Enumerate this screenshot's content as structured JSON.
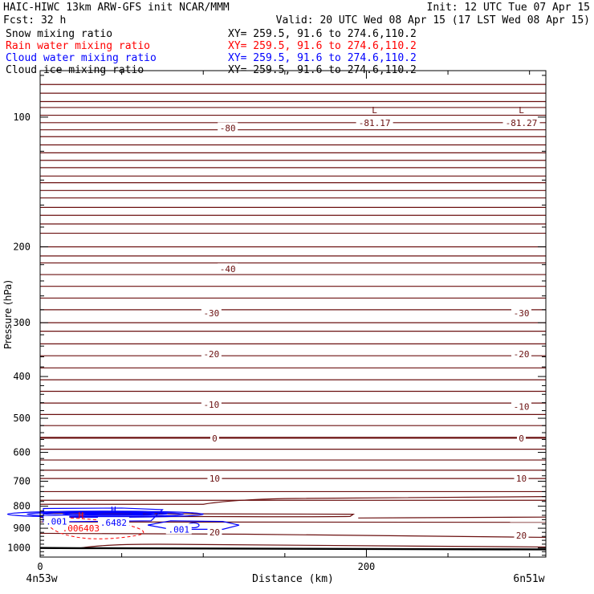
{
  "header": {
    "title": "HAIC-HIWC 13km ARW-GFS init   NCAR/MMM",
    "init": "Init: 12 UTC Tue 07 Apr 15",
    "fcst": "Fcst:    32 h",
    "valid": "Valid: 20 UTC Wed 08 Apr 15 (17 LST Wed 08 Apr 15)",
    "fields": [
      {
        "label": "Snow mixing ratio",
        "xy": "XY= 259.5, 91.6 to 274.6,110.2",
        "color": "#000000"
      },
      {
        "label": "Rain water mixing ratio",
        "xy": "XY= 259.5, 91.6 to 274.6,110.2",
        "color": "#ff0000"
      },
      {
        "label": "Cloud water mixing ratio",
        "xy": "XY= 259.5, 91.6 to 274.6,110.2",
        "color": "#0000ff"
      },
      {
        "label": "Cloud ice mixing ratio",
        "xy": "XY= 259.5, 91.6 to 274.6,110.2",
        "color": "#000000"
      }
    ]
  },
  "chart_data": {
    "type": "cross-section",
    "ylabel": "Pressure (hPa)",
    "xlabel": "Distance (km)",
    "y_scale": "log",
    "ylim": [
      1050,
      78
    ],
    "xlim": [
      0,
      310
    ],
    "y_ticks": [
      100,
      200,
      300,
      400,
      500,
      600,
      700,
      800,
      900,
      1000
    ],
    "x_ticks": [
      0,
      200
    ],
    "x_endpoints": {
      "left": "4n53w",
      "right": "6n51w"
    },
    "temperature_colors": {
      "isotherm": "#6b1010",
      "cloud_water": "#0000ff",
      "rain_water": "#ff0000",
      "ground": "#000000"
    },
    "isotherm_levels_hpa": [
      84,
      88,
      92,
      95,
      99,
      103,
      107,
      111,
      116,
      121,
      126,
      131,
      137,
      142,
      148,
      154,
      162,
      169,
      177,
      186,
      200,
      210,
      218,
      232,
      247,
      263,
      280,
      300,
      314,
      336,
      358,
      382,
      407,
      433,
      461,
      490,
      520,
      555,
      590,
      625,
      660,
      690,
      740,
      775,
      800,
      845,
      935
    ],
    "isotherm_labels": [
      {
        "text": "-80",
        "x": 115,
        "p": 106
      },
      {
        "text": "-40",
        "x": 115,
        "p": 225
      },
      {
        "text": "-30",
        "x": 105,
        "p": 285
      },
      {
        "text": "-30",
        "x": 295,
        "p": 285
      },
      {
        "text": "-20",
        "x": 105,
        "p": 355
      },
      {
        "text": "-20",
        "x": 295,
        "p": 355
      },
      {
        "text": "-10",
        "x": 105,
        "p": 465
      },
      {
        "text": "-10",
        "x": 295,
        "p": 470
      },
      {
        "text": "0",
        "x": 107,
        "p": 556
      },
      {
        "text": "0",
        "x": 295,
        "p": 557
      },
      {
        "text": "10",
        "x": 107,
        "p": 690
      },
      {
        "text": "10",
        "x": 295,
        "p": 690
      },
      {
        "text": "20",
        "x": 107,
        "p": 920
      },
      {
        "text": "20",
        "x": 295,
        "p": 935
      }
    ],
    "extrema": [
      {
        "symbol": "L",
        "value": "-81.17",
        "x": 205,
        "p": 98,
        "color": "#6b1010"
      },
      {
        "symbol": "L",
        "value": "-81.27",
        "x": 295,
        "p": 98,
        "color": "#6b1010"
      },
      {
        "symbol": "H",
        "value": ".6482",
        "x": 45,
        "p": 830,
        "color": "#0000ff"
      },
      {
        "symbol": "H",
        "value": ".006403",
        "x": 25,
        "p": 855,
        "color": "#ff0000"
      }
    ],
    "contour_labels": [
      {
        "text": ".001",
        "x": 10,
        "p": 868,
        "color": "#0000ff"
      },
      {
        "text": ".001",
        "x": 85,
        "p": 905,
        "color": "#0000ff"
      }
    ],
    "ground_pressure": [
      1000,
      1008
    ]
  }
}
